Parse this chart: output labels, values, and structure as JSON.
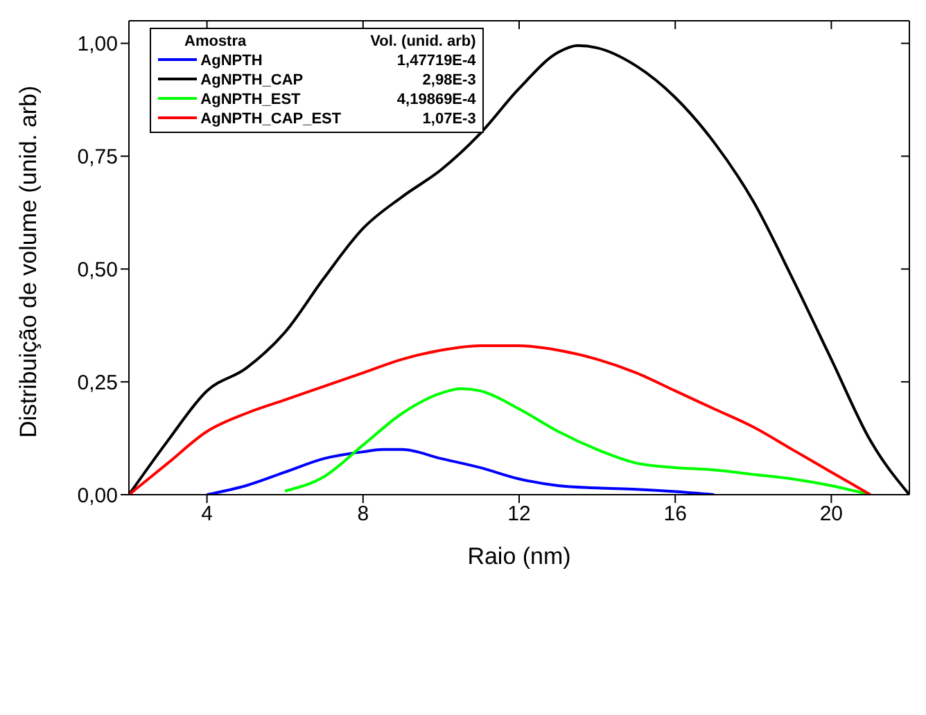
{
  "chart_data": {
    "type": "line",
    "xlabel": "Raio (nm)",
    "ylabel": "Distribuição de volume (unid. arb)",
    "legend_title": "Amostra",
    "legend": "top left",
    "line_style": "solid",
    "xlim": [
      2,
      22
    ],
    "xticks": [
      4,
      8,
      12,
      16,
      20
    ],
    "ylim": [
      0,
      1.05
    ],
    "yticks": [
      {
        "value": 0,
        "label": "0,00"
      },
      {
        "value": 0.25,
        "label": "0,25"
      },
      {
        "value": 0.5,
        "label": "0,50"
      },
      {
        "value": 0.75,
        "label": "0,75"
      },
      {
        "value": 1,
        "label": "1,00"
      }
    ],
    "annotations": [
      "Vol. (unid. arb)",
      "1,47719E-4",
      "2,98E-3",
      "4,19869E-4",
      "1,07E-3"
    ],
    "series": [
      {
        "name": "AgNPTH",
        "color": "#0000ff",
        "x": [
          4,
          5,
          6,
          7,
          8,
          8.5,
          9,
          10,
          11,
          12,
          13,
          14,
          15,
          16,
          17
        ],
        "values": [
          0,
          0.02,
          0.05,
          0.08,
          0.095,
          0.1,
          0.1,
          0.08,
          0.06,
          0.035,
          0.02,
          0.015,
          0.012,
          0.007,
          0
        ]
      },
      {
        "name": "AgNPTH_CAP",
        "color": "#000000",
        "x": [
          2,
          3,
          4,
          5,
          6,
          7,
          8,
          9,
          10,
          11,
          12,
          13,
          13.5,
          14,
          15,
          16,
          17,
          18,
          19,
          20,
          21,
          22
        ],
        "values": [
          0,
          0.12,
          0.23,
          0.28,
          0.36,
          0.48,
          0.59,
          0.66,
          0.72,
          0.8,
          0.9,
          0.98,
          0.995,
          0.99,
          0.95,
          0.88,
          0.78,
          0.65,
          0.48,
          0.3,
          0.12,
          0
        ]
      },
      {
        "name": "AgNPTH_EST",
        "color": "#00ff00",
        "x": [
          6,
          7,
          8,
          9,
          10,
          10.5,
          11,
          12,
          13,
          14,
          15,
          16,
          17,
          18,
          19,
          20,
          21
        ],
        "values": [
          0.008,
          0.04,
          0.11,
          0.18,
          0.225,
          0.235,
          0.23,
          0.19,
          0.14,
          0.1,
          0.07,
          0.06,
          0.055,
          0.045,
          0.035,
          0.02,
          0
        ]
      },
      {
        "name": "AgNPTH_CAP_EST",
        "color": "#ff0000",
        "x": [
          2,
          3,
          4,
          5,
          6,
          7,
          8,
          9,
          10,
          11,
          12,
          13,
          14,
          15,
          16,
          17,
          18,
          19,
          20,
          21
        ],
        "values": [
          0,
          0.07,
          0.14,
          0.18,
          0.21,
          0.24,
          0.27,
          0.3,
          0.32,
          0.33,
          0.33,
          0.32,
          0.3,
          0.27,
          0.23,
          0.19,
          0.15,
          0.1,
          0.05,
          0
        ]
      }
    ]
  }
}
